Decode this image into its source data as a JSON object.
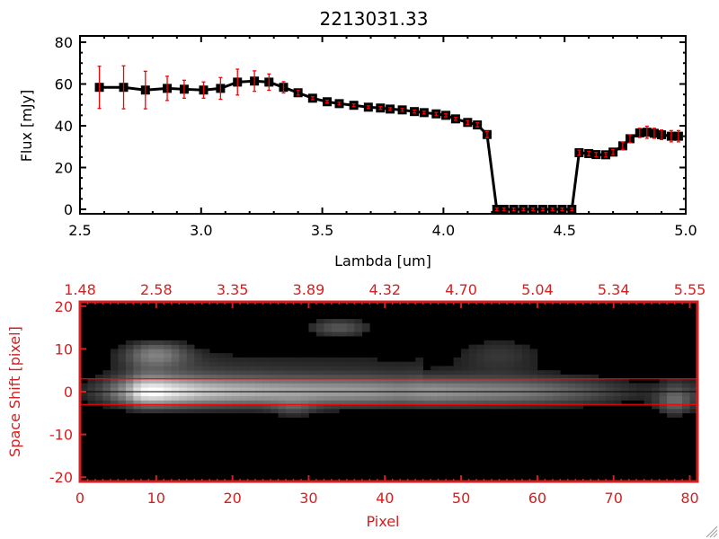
{
  "colors": {
    "axis_top": "#000000",
    "axis_bottom": "#d42020",
    "errorbar": "#ff0000",
    "aperture": "#ff0000"
  },
  "chart_data": [
    {
      "type": "line",
      "title": "2213031.33",
      "xlabel": "Lambda [um]",
      "ylabel": "Flux [mJy]",
      "xlim": [
        2.5,
        5.0
      ],
      "ylim": [
        0,
        80
      ],
      "xticks": [
        "2.5",
        "3.0",
        "3.5",
        "4.0",
        "4.5",
        "5.0"
      ],
      "yticks": [
        "0",
        "20",
        "40",
        "60",
        "80"
      ],
      "grid": false,
      "marker": "square",
      "x": [
        2.58,
        2.68,
        2.77,
        2.86,
        2.93,
        3.01,
        3.08,
        3.15,
        3.22,
        3.28,
        3.34,
        3.4,
        3.46,
        3.52,
        3.57,
        3.63,
        3.69,
        3.74,
        3.78,
        3.83,
        3.88,
        3.92,
        3.97,
        4.01,
        4.05,
        4.1,
        4.14,
        4.18,
        4.22,
        4.25,
        4.29,
        4.33,
        4.37,
        4.41,
        4.45,
        4.49,
        4.53,
        4.56,
        4.6,
        4.63,
        4.67,
        4.7,
        4.74,
        4.77,
        4.81,
        4.84,
        4.87,
        4.9,
        4.94,
        4.97
      ],
      "values": [
        58.4,
        58.4,
        57.1,
        57.9,
        57.5,
        57.1,
        57.9,
        60.9,
        61.4,
        60.9,
        58.4,
        55.8,
        53.2,
        51.5,
        50.6,
        49.8,
        48.9,
        48.5,
        48.0,
        47.6,
        46.8,
        46.3,
        45.7,
        45.0,
        43.3,
        41.6,
        40.4,
        35.8,
        0,
        0,
        0,
        0,
        0,
        0,
        0,
        0,
        0,
        27.1,
        26.7,
        26.2,
        26.1,
        27.4,
        30.4,
        33.8,
        36.6,
        36.9,
        36.4,
        35.7,
        35.0,
        35.0
      ],
      "errors": [
        10.1,
        10.3,
        9.0,
        5.8,
        4.3,
        3.9,
        5.2,
        6.2,
        4.9,
        3.9,
        2.7,
        1.1,
        0.7,
        0.5,
        0.5,
        0.4,
        0.4,
        0.5,
        0.6,
        0.5,
        0.7,
        0.5,
        0.3,
        0.7,
        0.7,
        0.9,
        1.0,
        1.5,
        0,
        0,
        0,
        0,
        0,
        0,
        0,
        0,
        0,
        1.2,
        1.1,
        1.0,
        1.1,
        1.2,
        1.8,
        1.9,
        2.2,
        2.9,
        2.4,
        2.3,
        2.7,
        2.7
      ]
    },
    {
      "type": "heatmap",
      "xlabel": "Pixel",
      "ylabel": "Space Shift [pixel]",
      "xlim": [
        0,
        81
      ],
      "ylim": [
        -21,
        21
      ],
      "xticks": [
        "0",
        "10",
        "20",
        "30",
        "40",
        "50",
        "60",
        "70",
        "80"
      ],
      "yticks": [
        "-20",
        "-10",
        "0",
        "10",
        "20"
      ],
      "top_xticks": [
        "1.48",
        "2.58",
        "3.35",
        "3.89",
        "4.32",
        "4.70",
        "5.04",
        "5.34",
        "5.55"
      ],
      "aperture_lines": [
        3,
        -3
      ],
      "center_line": 0,
      "trace_profile_x": [
        0,
        3,
        6,
        8,
        10,
        12,
        16,
        20,
        26,
        32,
        38,
        42,
        46,
        52,
        58,
        62,
        66,
        70,
        74,
        76,
        78,
        80
      ],
      "trace_profile_brightness": [
        0.1,
        0.25,
        0.55,
        0.95,
        1.0,
        0.9,
        0.75,
        0.68,
        0.62,
        0.58,
        0.55,
        0.5,
        0.55,
        0.5,
        0.45,
        0.38,
        0.3,
        0.2,
        0.12,
        0.15,
        0.25,
        0.18
      ]
    }
  ]
}
